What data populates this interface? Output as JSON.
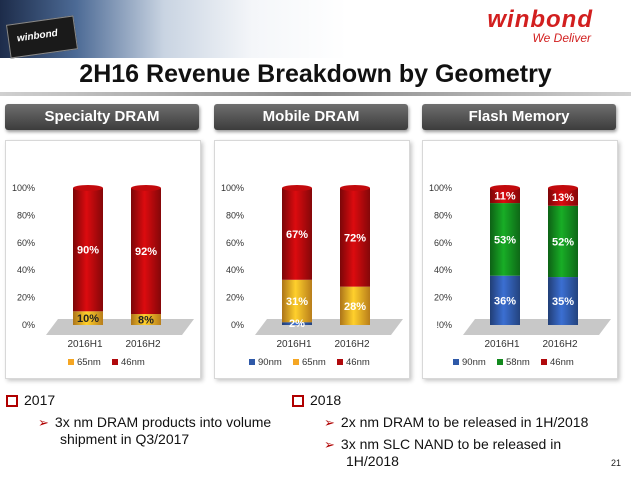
{
  "header": {
    "logo": "winbond",
    "tagline": "We Deliver",
    "chip_label": "winbond",
    "title": "2H16 Revenue Breakdown by Geometry"
  },
  "tabs": [
    "Specialty DRAM",
    "Mobile DRAM",
    "Flash Memory"
  ],
  "chart_data": [
    {
      "type": "bar",
      "stacked": true,
      "title": "Specialty DRAM",
      "categories": [
        "2016H1",
        "2016H2"
      ],
      "yticks": [
        "100%",
        "80%",
        "60%",
        "40%",
        "20%",
        "0%"
      ],
      "ylim": [
        0,
        100
      ],
      "series": [
        {
          "name": "65nm",
          "color": "#f5a623",
          "values": [
            10,
            8
          ],
          "labels": [
            "10%",
            "8%"
          ]
        },
        {
          "name": "46nm",
          "color": "#b0090c",
          "values": [
            90,
            92
          ],
          "labels": [
            "90%",
            "92%"
          ]
        }
      ],
      "legend": "bottom"
    },
    {
      "type": "bar",
      "stacked": true,
      "title": "Mobile DRAM",
      "categories": [
        "2016H1",
        "2016H2"
      ],
      "yticks": [
        "100%",
        "80%",
        "60%",
        "40%",
        "20%",
        "0%"
      ],
      "ylim": [
        0,
        100
      ],
      "series": [
        {
          "name": "90nm",
          "color": "#2f59a8",
          "values": [
            2,
            0
          ],
          "labels": [
            "2%",
            ""
          ]
        },
        {
          "name": "65nm",
          "color": "#f5a623",
          "values": [
            31,
            28
          ],
          "labels": [
            "31%",
            "28%"
          ]
        },
        {
          "name": "46nm",
          "color": "#b0090c",
          "values": [
            67,
            72
          ],
          "labels": [
            "67%",
            "72%"
          ]
        }
      ],
      "legend": "bottom"
    },
    {
      "type": "bar",
      "stacked": true,
      "title": "Flash Memory",
      "categories": [
        "2016H1",
        "2016H2"
      ],
      "yticks": [
        "100%",
        "80%",
        "60%",
        "40%",
        "20%",
        "!0%"
      ],
      "ylim": [
        0,
        100
      ],
      "series": [
        {
          "name": "90nm",
          "color": "#2f59a8",
          "values": [
            36,
            35
          ],
          "labels": [
            "36%",
            "35%"
          ]
        },
        {
          "name": "58nm",
          "color": "#138a1e",
          "values": [
            53,
            52
          ],
          "labels": [
            "53%",
            "52%"
          ]
        },
        {
          "name": "46nm",
          "color": "#b0090c",
          "values": [
            11,
            13
          ],
          "labels": [
            "11%",
            "13%"
          ]
        }
      ],
      "legend": "bottom"
    }
  ],
  "bullets": {
    "left": {
      "heading": "2017",
      "items": [
        "3x nm DRAM products into volume",
        "shipment in Q3/2017"
      ]
    },
    "right": {
      "heading": "2018",
      "items": [
        "2x nm DRAM to be released in 1H/2018",
        "3x nm SLC NAND to be released in",
        "1H/2018"
      ]
    }
  },
  "page_number": "21"
}
